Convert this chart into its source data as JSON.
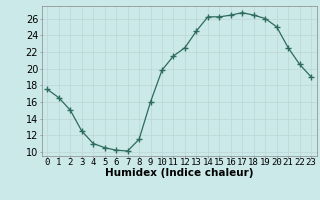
{
  "x": [
    0,
    1,
    2,
    3,
    4,
    5,
    6,
    7,
    8,
    9,
    10,
    11,
    12,
    13,
    14,
    15,
    16,
    17,
    18,
    19,
    20,
    21,
    22,
    23
  ],
  "y": [
    17.5,
    16.5,
    15.0,
    12.5,
    11.0,
    10.5,
    10.2,
    10.1,
    11.5,
    16.0,
    19.8,
    21.5,
    22.5,
    24.5,
    26.2,
    26.2,
    26.4,
    26.7,
    26.4,
    26.0,
    25.0,
    22.5,
    20.5,
    19.0
  ],
  "line_color": "#2d6b5e",
  "marker": "P",
  "markersize": 2.5,
  "bg_color": "#cce9e9",
  "grid_color": "#c0d8d8",
  "xlabel": "Humidex (Indice chaleur)",
  "ylabel_ticks": [
    10,
    12,
    14,
    16,
    18,
    20,
    22,
    24,
    26
  ],
  "xlim": [
    -0.5,
    23.5
  ],
  "ylim": [
    9.5,
    27.5
  ],
  "xlabel_fontsize": 7.5,
  "tick_fontsize": 7
}
